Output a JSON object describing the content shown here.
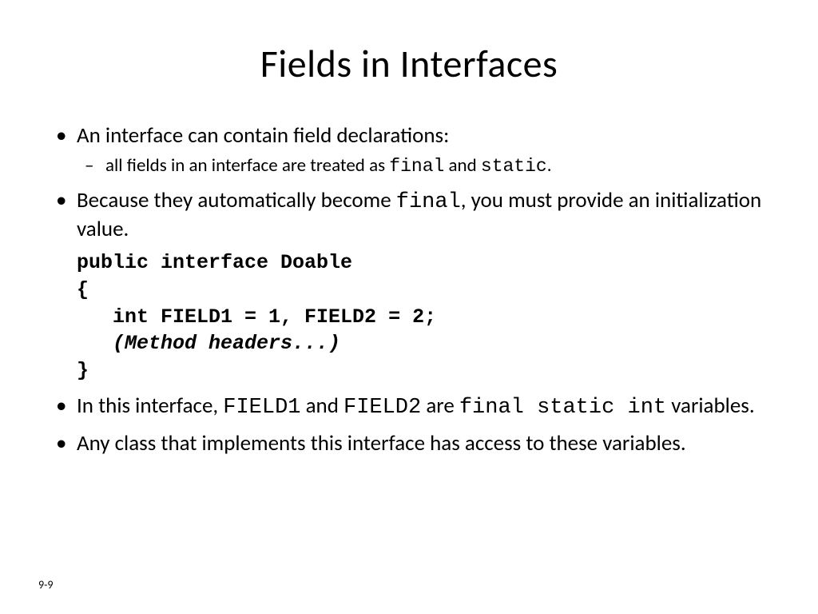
{
  "title": "Fields in Interfaces",
  "bullets": {
    "b1": {
      "parts": [
        "An interface can contain field declarations:"
      ],
      "sub": {
        "s1": {
          "t1": "all fields in an interface are treated as ",
          "c1": "final",
          "t2": " and ",
          "c2": "static",
          "t3": "."
        }
      }
    },
    "b2": {
      "t1": "Because they automatically become ",
      "c1": "final",
      "t2": ", you must provide an initialization value."
    },
    "code": {
      "l1": "public interface Doable",
      "l2": "{",
      "l3": "   int FIELD1 = 1, FIELD2 = 2;",
      "l4": "   (Method headers...)",
      "l5": "}"
    },
    "b3": {
      "t1": "In this interface, ",
      "c1": "FIELD1",
      "t2": " and ",
      "c2": "FIELD2",
      "t3": " are ",
      "c3": "final static int",
      "t4": " variables."
    },
    "b4": {
      "t1": "Any class that implements this interface has access to these variables."
    }
  },
  "pageNumber": "9-9",
  "style": {
    "background": "#ffffff",
    "text_color": "#000000",
    "title_fontsize": 48,
    "bullet_fontsize": 27,
    "sub_fontsize": 23,
    "code_fontsize": 25,
    "pagenum_fontsize": 14,
    "font_family_body": "Calibri",
    "font_family_mono": "Courier New"
  }
}
